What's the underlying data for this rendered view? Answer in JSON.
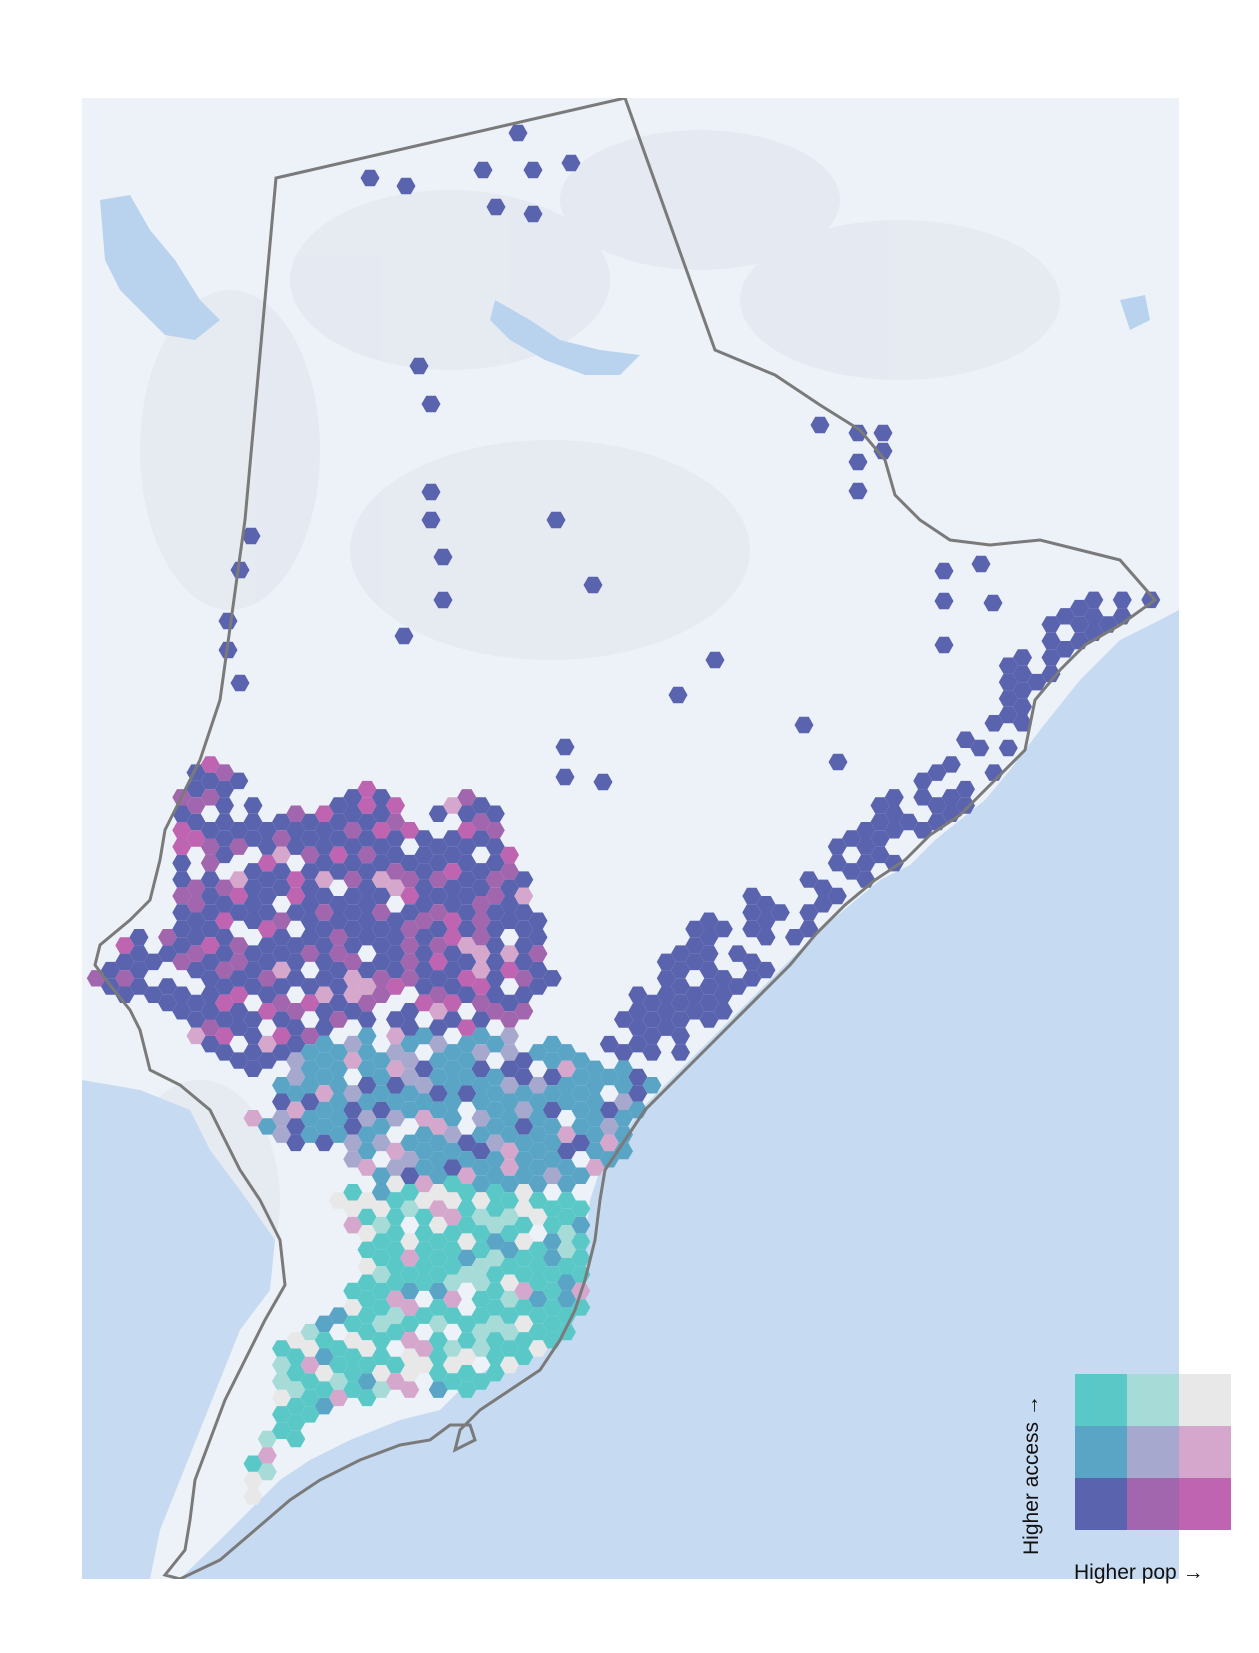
{
  "legend": {
    "y_label": "Higher access →",
    "x_label": "Higher pop →",
    "palette": [
      [
        "#5bc8c8",
        "#a6dbd8",
        "#e8e8e8"
      ],
      [
        "#5aa4c6",
        "#a7a8cd",
        "#d5a7cc"
      ],
      [
        "#5a63ae",
        "#a266ae",
        "#be64b0"
      ]
    ]
  },
  "map": {
    "land_color": "#edf2f9",
    "water_color": "#c6daf2",
    "boundary_color": "#7a7a7a"
  }
}
